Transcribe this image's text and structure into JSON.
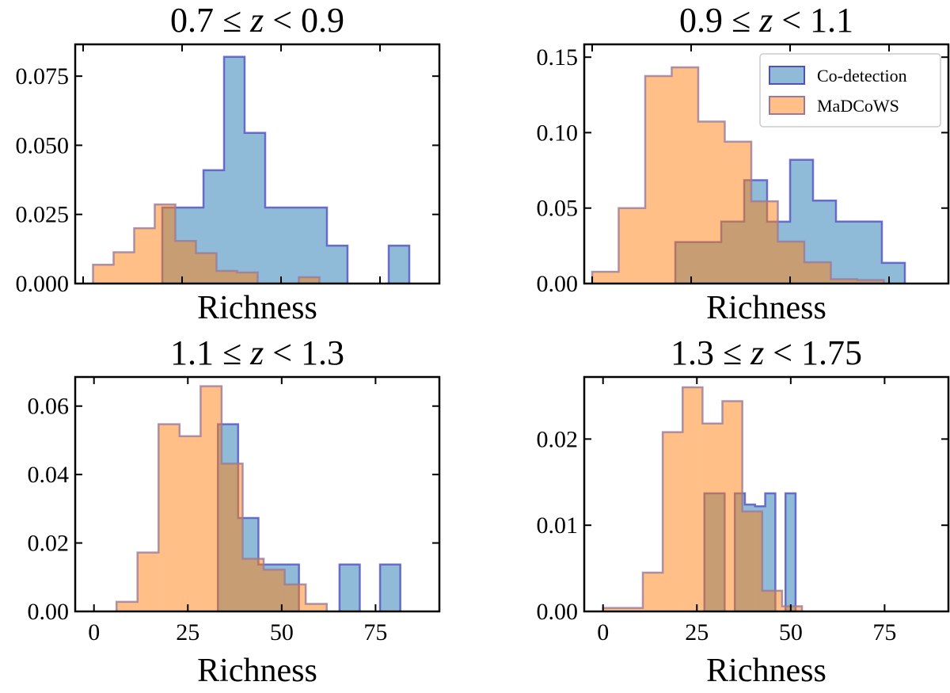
{
  "figure": {
    "colors": {
      "codetection_fill": "#1f77b4",
      "codetection_edge": "#5050c0",
      "madcows_fill": "#ff7f0e",
      "madcows_edge": "#9a7a9a"
    }
  },
  "chart_data": [
    {
      "type": "bar",
      "title": "0.7 ≤ z < 0.9",
      "xlabel": "Richness",
      "ylabel": "",
      "xlim": [
        -2,
        90
      ],
      "ylim": [
        0,
        0.0865
      ],
      "xticks": [
        0,
        25,
        50,
        75
      ],
      "xtick_labels": [],
      "yticks": [
        0,
        0.025,
        0.05,
        0.075
      ],
      "ytick_labels": [
        "0.000",
        "0.025",
        "0.050",
        "0.075"
      ],
      "legend": null,
      "series": [
        {
          "name": "Co-detection",
          "color": "#1f77b4",
          "edges": [
            20.0,
            25.2,
            30.4,
            35.6,
            40.8,
            46.0,
            51.2,
            56.4,
            61.6,
            66.8,
            72.0,
            77.2,
            82.4
          ],
          "values": [
            0.0275,
            0.0275,
            0.041,
            0.082,
            0.0545,
            0.0275,
            0.0275,
            0.0275,
            0.0137,
            0.0,
            0.0,
            0.0137
          ]
        },
        {
          "name": "MaDCoWS",
          "color": "#ff7f0e",
          "edges": [
            2.5,
            7.7,
            12.9,
            18.1,
            23.3,
            28.5,
            33.7,
            38.9,
            44.1,
            49.3,
            54.5,
            59.7,
            64.9
          ],
          "values": [
            0.0068,
            0.0113,
            0.02,
            0.0286,
            0.0154,
            0.011,
            0.0046,
            0.004,
            0.0,
            0.0,
            0.0023,
            0.0
          ]
        }
      ]
    },
    {
      "type": "bar",
      "title": "0.9 ≤ z < 1.1",
      "xlabel": "Richness",
      "ylabel": "",
      "xlim": [
        -2,
        90
      ],
      "ylim": [
        0,
        0.1585
      ],
      "xticks": [
        0,
        25,
        50,
        75
      ],
      "xtick_labels": [],
      "yticks": [
        0,
        0.05,
        0.1,
        0.15
      ],
      "ytick_labels": [
        "0.00",
        "0.05",
        "0.10",
        "0.15"
      ],
      "legend": {
        "location": "upper-right",
        "entries": [
          "Co-detection",
          "MaDCoWS"
        ]
      },
      "series": [
        {
          "name": "Co-detection",
          "color": "#1f77b4",
          "edges": [
            21.0,
            26.8,
            32.6,
            38.4,
            44.2,
            50.0,
            55.8,
            61.6,
            67.4,
            73.2,
            79.0
          ],
          "values": [
            0.0275,
            0.0275,
            0.0411,
            0.0685,
            0.041,
            0.082,
            0.055,
            0.0411,
            0.0411,
            0.0137
          ]
        },
        {
          "name": "MaDCoWS",
          "color": "#ff7f0e",
          "edges": [
            0.0,
            6.7,
            13.4,
            20.1,
            26.8,
            33.5,
            40.2,
            46.9,
            53.6,
            60.3,
            67.0,
            73.7,
            80.4
          ],
          "values": [
            0.0078,
            0.05,
            0.1375,
            0.1433,
            0.1073,
            0.094,
            0.0545,
            0.0278,
            0.0141,
            0.0029,
            0.0023,
            0.0
          ]
        }
      ]
    },
    {
      "type": "bar",
      "title": "1.1 ≤ z < 1.3",
      "xlabel": "Richness",
      "ylabel": "",
      "xlim": [
        -5,
        92
      ],
      "ylim": [
        0,
        0.0685
      ],
      "xticks": [
        0,
        25,
        50,
        75
      ],
      "xtick_labels": [
        "0",
        "25",
        "50",
        "75"
      ],
      "yticks": [
        0,
        0.02,
        0.04,
        0.06
      ],
      "ytick_labels": [
        "0.00",
        "0.02",
        "0.04",
        "0.06"
      ],
      "legend": null,
      "series": [
        {
          "name": "Co-detection",
          "color": "#1f77b4",
          "edges": [
            33.0,
            38.4,
            43.8,
            49.2,
            54.6,
            60.0,
            65.4,
            70.8,
            76.2,
            81.6,
            87.0
          ],
          "values": [
            0.0547,
            0.0273,
            0.0137,
            0.0137,
            0.0,
            0.0,
            0.0137,
            0.0,
            0.0137,
            0.0
          ]
        },
        {
          "name": "MaDCoWS",
          "color": "#ff7f0e",
          "edges": [
            6.0,
            11.6,
            17.2,
            22.8,
            28.4,
            34.0,
            39.6,
            45.2,
            50.8,
            56.4,
            62.0
          ],
          "values": [
            0.0028,
            0.0172,
            0.0547,
            0.0512,
            0.0658,
            0.0432,
            0.0154,
            0.0122,
            0.0079,
            0.0022
          ]
        }
      ]
    },
    {
      "type": "bar",
      "title": "1.3 ≤ z < 1.75",
      "xlabel": "Richness",
      "ylabel": "",
      "xlim": [
        -5,
        92
      ],
      "ylim": [
        0,
        0.0272
      ],
      "xticks": [
        0,
        25,
        50,
        75
      ],
      "xtick_labels": [
        "0",
        "25",
        "50",
        "75"
      ],
      "yticks": [
        0,
        0.01,
        0.02
      ],
      "ytick_labels": [
        "0.00",
        "0.01",
        "0.02"
      ],
      "legend": null,
      "series": [
        {
          "name": "Co-detection",
          "color": "#1f77b4",
          "edges": [
            27.0,
            29.7,
            32.4,
            35.1,
            37.8,
            40.5,
            43.2,
            45.9,
            48.6,
            51.3
          ],
          "values": [
            0.0137,
            0.0137,
            0.0,
            0.0137,
            0.0124,
            0.0122,
            0.0137,
            0.0,
            0.0137
          ]
        },
        {
          "name": "MaDCoWS",
          "color": "#ff7f0e",
          "edges": [
            0.0,
            5.3,
            10.6,
            15.9,
            21.2,
            26.5,
            31.8,
            37.1,
            42.4,
            47.7,
            53.0
          ],
          "values": [
            0.0004,
            0.0004,
            0.0045,
            0.0208,
            0.026,
            0.0218,
            0.0244,
            0.0116,
            0.0024,
            0.0006
          ]
        }
      ]
    }
  ]
}
